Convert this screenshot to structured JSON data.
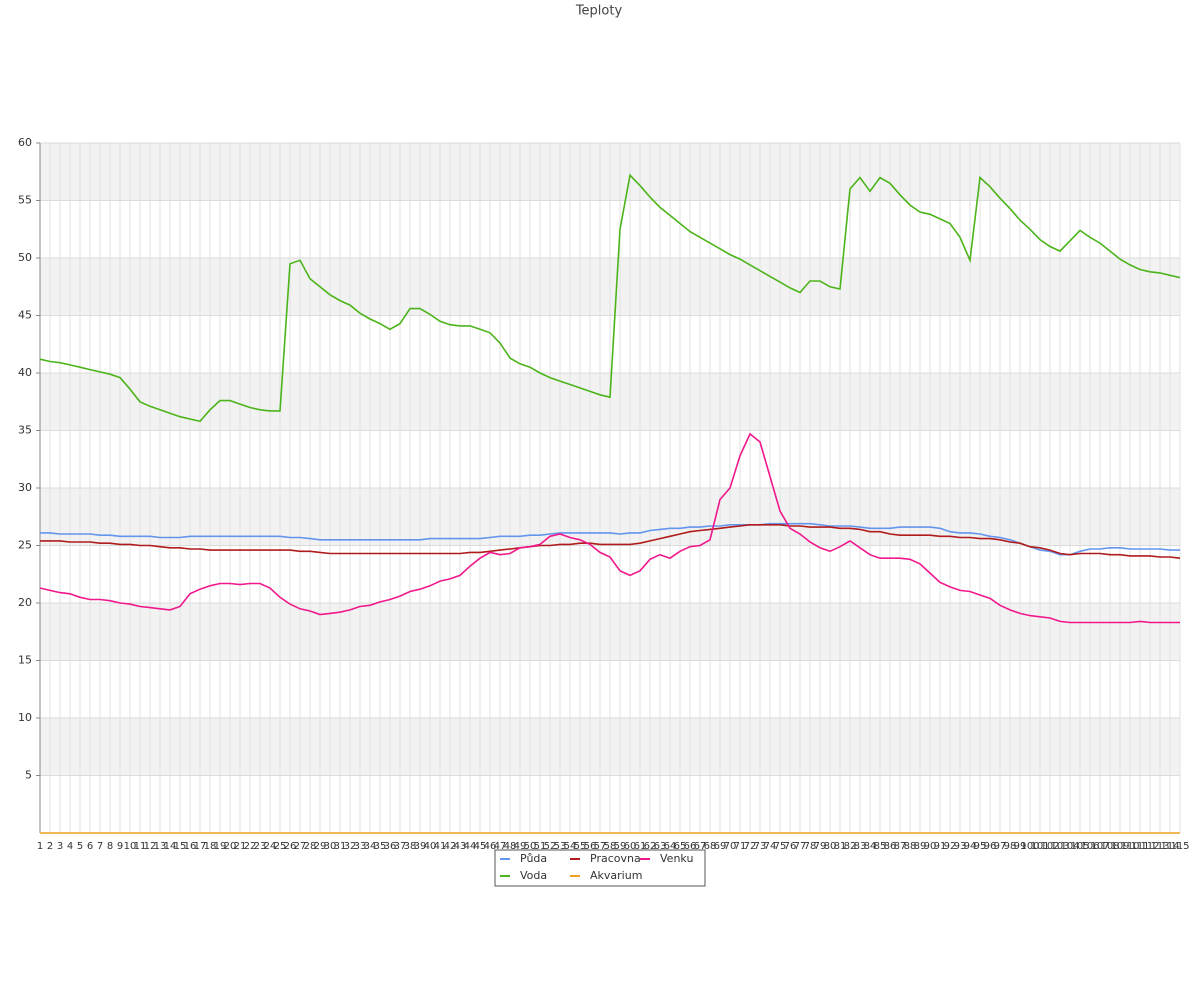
{
  "chart_data": {
    "type": "line",
    "title": "Teploty",
    "categories": [
      1,
      2,
      3,
      4,
      5,
      6,
      7,
      8,
      9,
      10,
      11,
      12,
      13,
      14,
      15,
      16,
      17,
      18,
      19,
      20,
      21,
      22,
      23,
      24,
      25,
      26,
      27,
      28,
      29,
      30,
      31,
      32,
      33,
      34,
      35,
      36,
      37,
      38,
      39,
      40,
      41,
      42,
      43,
      44,
      45,
      46,
      47,
      48,
      49,
      50,
      51,
      52,
      53,
      54,
      55,
      56,
      57,
      58,
      59,
      60,
      61,
      62,
      63,
      64,
      65,
      66,
      67,
      68,
      69,
      70,
      71,
      72,
      73,
      74,
      75,
      76,
      77,
      78,
      79,
      80,
      81,
      82,
      83,
      84,
      85,
      86,
      87,
      88,
      89,
      90,
      91,
      92,
      93,
      94,
      95,
      96,
      97,
      98,
      99,
      100,
      101,
      102,
      103,
      104,
      105,
      106,
      107,
      108,
      109,
      110,
      111,
      112,
      113,
      114,
      115
    ],
    "ylim": [
      0,
      60
    ],
    "yticks": [
      5,
      10,
      15,
      20,
      25,
      30,
      35,
      40,
      45,
      50,
      55,
      60
    ],
    "grid": true,
    "bands": true,
    "legend": "bottom",
    "series": [
      {
        "name": "Půda",
        "color": "#6495ed",
        "values": [
          26.1,
          26.1,
          26.0,
          26.0,
          26.0,
          26.0,
          25.9,
          25.9,
          25.8,
          25.8,
          25.8,
          25.8,
          25.7,
          25.7,
          25.7,
          25.8,
          25.8,
          25.8,
          25.8,
          25.8,
          25.8,
          25.8,
          25.8,
          25.8,
          25.8,
          25.7,
          25.7,
          25.6,
          25.5,
          25.5,
          25.5,
          25.5,
          25.5,
          25.5,
          25.5,
          25.5,
          25.5,
          25.5,
          25.5,
          25.6,
          25.6,
          25.6,
          25.6,
          25.6,
          25.6,
          25.7,
          25.8,
          25.8,
          25.8,
          25.9,
          25.9,
          26.0,
          26.1,
          26.1,
          26.1,
          26.1,
          26.1,
          26.1,
          26.0,
          26.1,
          26.1,
          26.3,
          26.4,
          26.5,
          26.5,
          26.6,
          26.6,
          26.7,
          26.7,
          26.8,
          26.8,
          26.8,
          26.8,
          26.9,
          26.9,
          26.9,
          26.9,
          26.9,
          26.8,
          26.7,
          26.7,
          26.7,
          26.6,
          26.5,
          26.5,
          26.5,
          26.6,
          26.6,
          26.6,
          26.6,
          26.5,
          26.2,
          26.1,
          26.1,
          26.0,
          25.8,
          25.7,
          25.5,
          25.2,
          24.9,
          24.6,
          24.5,
          24.2,
          24.2,
          24.5,
          24.7,
          24.7,
          24.8,
          24.8,
          24.7,
          24.7,
          24.7,
          24.7,
          24.6,
          24.6
        ]
      },
      {
        "name": "Pracovna",
        "color": "#b01c1c",
        "values": [
          25.4,
          25.4,
          25.4,
          25.3,
          25.3,
          25.3,
          25.2,
          25.2,
          25.1,
          25.1,
          25.0,
          25.0,
          24.9,
          24.8,
          24.8,
          24.7,
          24.7,
          24.6,
          24.6,
          24.6,
          24.6,
          24.6,
          24.6,
          24.6,
          24.6,
          24.6,
          24.5,
          24.5,
          24.4,
          24.3,
          24.3,
          24.3,
          24.3,
          24.3,
          24.3,
          24.3,
          24.3,
          24.3,
          24.3,
          24.3,
          24.3,
          24.3,
          24.3,
          24.4,
          24.4,
          24.5,
          24.6,
          24.7,
          24.8,
          24.9,
          25.0,
          25.0,
          25.1,
          25.1,
          25.2,
          25.2,
          25.1,
          25.1,
          25.1,
          25.1,
          25.2,
          25.4,
          25.6,
          25.8,
          26.0,
          26.2,
          26.3,
          26.4,
          26.5,
          26.6,
          26.7,
          26.8,
          26.8,
          26.8,
          26.8,
          26.7,
          26.7,
          26.6,
          26.6,
          26.6,
          26.5,
          26.5,
          26.4,
          26.2,
          26.2,
          26.0,
          25.9,
          25.9,
          25.9,
          25.9,
          25.8,
          25.8,
          25.7,
          25.7,
          25.6,
          25.6,
          25.5,
          25.3,
          25.2,
          24.9,
          24.8,
          24.6,
          24.3,
          24.2,
          24.3,
          24.3,
          24.3,
          24.2,
          24.2,
          24.1,
          24.1,
          24.1,
          24.0,
          24.0,
          23.9
        ]
      },
      {
        "name": "Venku",
        "color": "#f0188c",
        "values": [
          21.3,
          21.1,
          20.9,
          20.8,
          20.5,
          20.3,
          20.3,
          20.2,
          20.0,
          19.9,
          19.7,
          19.6,
          19.5,
          19.4,
          19.7,
          20.8,
          21.2,
          21.5,
          21.7,
          21.7,
          21.6,
          21.7,
          21.7,
          21.3,
          20.5,
          19.9,
          19.5,
          19.3,
          19.0,
          19.1,
          19.2,
          19.4,
          19.7,
          19.8,
          20.1,
          20.3,
          20.6,
          21.0,
          21.2,
          21.5,
          21.9,
          22.1,
          22.4,
          23.2,
          23.9,
          24.4,
          24.2,
          24.3,
          24.8,
          24.9,
          25.1,
          25.8,
          26.0,
          25.7,
          25.5,
          25.1,
          24.4,
          24.0,
          22.8,
          22.4,
          22.8,
          23.8,
          24.2,
          23.9,
          24.5,
          24.9,
          25.0,
          25.5,
          29.0,
          30.0,
          32.8,
          34.7,
          34.0,
          31.0,
          28.0,
          26.5,
          26.0,
          25.3,
          24.8,
          24.5,
          24.9,
          25.4,
          24.8,
          24.2,
          23.9,
          23.9,
          23.9,
          23.8,
          23.4,
          22.6,
          21.8,
          21.4,
          21.1,
          21.0,
          20.7,
          20.4,
          19.8,
          19.4,
          19.1,
          18.9,
          18.8,
          18.7,
          18.4,
          18.3,
          18.3,
          18.3,
          18.3,
          18.3,
          18.3,
          18.3,
          18.4,
          18.3,
          18.3,
          18.3,
          18.3
        ]
      },
      {
        "name": "Voda",
        "color": "#4cb41a",
        "values": [
          41.2,
          41.0,
          40.9,
          40.7,
          40.5,
          40.3,
          40.1,
          39.9,
          39.6,
          38.6,
          37.5,
          37.1,
          36.8,
          36.5,
          36.2,
          36.0,
          35.8,
          36.8,
          37.6,
          37.6,
          37.3,
          37.0,
          36.8,
          36.7,
          36.7,
          49.5,
          49.8,
          48.2,
          47.5,
          46.8,
          46.3,
          45.9,
          45.2,
          44.7,
          44.3,
          43.8,
          44.3,
          45.6,
          45.6,
          45.1,
          44.5,
          44.2,
          44.1,
          44.1,
          43.8,
          43.5,
          42.6,
          41.3,
          40.8,
          40.5,
          40.0,
          39.6,
          39.3,
          39.0,
          38.7,
          38.4,
          38.1,
          37.9,
          52.5,
          57.2,
          56.3,
          55.3,
          54.4,
          53.7,
          53.0,
          52.3,
          51.8,
          51.3,
          50.8,
          50.3,
          49.9,
          49.4,
          48.9,
          48.4,
          47.9,
          47.4,
          47.0,
          48.0,
          48.0,
          47.5,
          47.3,
          56.0,
          57.0,
          55.8,
          57.0,
          56.5,
          55.5,
          54.6,
          54.0,
          53.8,
          53.4,
          53.0,
          51.8,
          49.8,
          57.0,
          56.2,
          55.2,
          54.3,
          53.3,
          52.5,
          51.6,
          51.0,
          50.6,
          51.5,
          52.4,
          51.8,
          51.3,
          50.6,
          49.9,
          49.4,
          49.0,
          48.8,
          48.7,
          48.5,
          48.3
        ]
      },
      {
        "name": "Akvarium",
        "color": "#f0a020",
        "values": [
          0,
          0,
          0,
          0,
          0,
          0,
          0,
          0,
          0,
          0,
          0,
          0,
          0,
          0,
          0,
          0,
          0,
          0,
          0,
          0,
          0,
          0,
          0,
          0,
          0,
          0,
          0,
          0,
          0,
          0,
          0,
          0,
          0,
          0,
          0,
          0,
          0,
          0,
          0,
          0,
          0,
          0,
          0,
          0,
          0,
          0,
          0,
          0,
          0,
          0,
          0,
          0,
          0,
          0,
          0,
          0,
          0,
          0,
          0,
          0,
          0,
          0,
          0,
          0,
          0,
          0,
          0,
          0,
          0,
          0,
          0,
          0,
          0,
          0,
          0,
          0,
          0,
          0,
          0,
          0,
          0,
          0,
          0,
          0,
          0,
          0,
          0,
          0,
          0,
          0,
          0,
          0,
          0,
          0,
          0,
          0,
          0,
          0,
          0,
          0,
          0,
          0,
          0,
          0,
          0,
          0,
          0,
          0,
          0,
          0,
          0,
          0,
          0,
          0,
          0
        ]
      }
    ]
  }
}
